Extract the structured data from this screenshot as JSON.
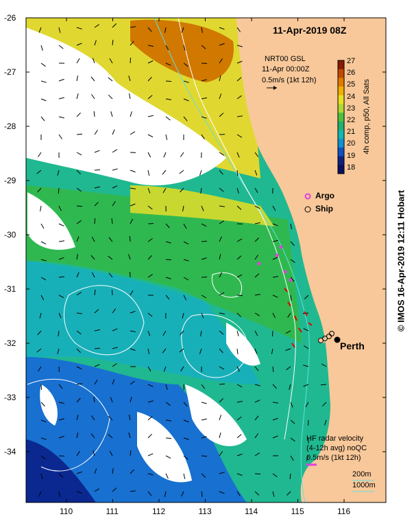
{
  "title": "11-Apr-2019 08Z",
  "gsl_info": {
    "line1": "NRT00 GSL",
    "line2": "11-Apr 00:00Z",
    "scale": "0.5m/s (1kt 12h)"
  },
  "colorbar": {
    "label": "4h comp, p50, All Sats",
    "ticks": [
      "27",
      "26",
      "25",
      "24",
      "23",
      "22",
      "21",
      "20",
      "19",
      "18"
    ],
    "colors": [
      "#8b1a00",
      "#c24a00",
      "#e07a00",
      "#f0b000",
      "#e8e020",
      "#b0d830",
      "#50c040",
      "#20b070",
      "#10b8b0",
      "#1090d0",
      "#1050c0",
      "#102080",
      "#0a1060"
    ]
  },
  "legend": {
    "argo": "Argo",
    "ship": "Ship"
  },
  "place": "Perth",
  "hf_radar": {
    "line1": "HF radar velocity",
    "line2": "(4-12h avg) noQC",
    "line3": "0.5m/s (1kt 12h)"
  },
  "isobaths": [
    "200m",
    "1000m"
  ],
  "lat_ticks": [
    "-26",
    "-27",
    "-28",
    "-29",
    "-30",
    "-31",
    "-32",
    "-33",
    "-34"
  ],
  "lon_ticks": [
    "110",
    "111",
    "112",
    "113",
    "114",
    "115",
    "116"
  ],
  "credit": "© IMOS 16-Apr-2019 12:11 Hobart",
  "colors": {
    "land": "#f8c89a",
    "no_data": "#ffffff",
    "isobath_200": "#60e0e0",
    "isobath_1000": "#ffffff",
    "argo": "#e040e0",
    "hf_vector": "#e00000"
  }
}
